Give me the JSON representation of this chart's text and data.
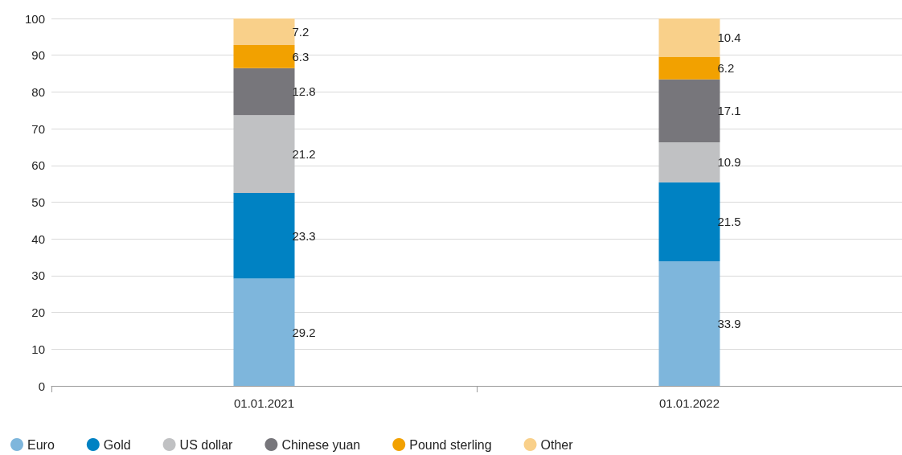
{
  "chart_data": {
    "type": "bar",
    "stacked": true,
    "categories": [
      "01.01.2021",
      "01.01.2022"
    ],
    "series": [
      {
        "name": "Euro",
        "color": "#7eb6dc",
        "values": [
          29.2,
          33.9
        ]
      },
      {
        "name": "Gold",
        "color": "#0082c3",
        "values": [
          23.3,
          21.5
        ]
      },
      {
        "name": "US dollar",
        "color": "#c0c1c3",
        "values": [
          21.2,
          10.9
        ]
      },
      {
        "name": "Chinese yuan",
        "color": "#77767b",
        "values": [
          12.8,
          17.1
        ]
      },
      {
        "name": "Pound sterling",
        "color": "#f2a100",
        "values": [
          6.3,
          6.2
        ]
      },
      {
        "name": "Other",
        "color": "#f9d08a",
        "values": [
          7.2,
          10.4
        ]
      }
    ],
    "ylim": [
      0,
      100
    ],
    "yticks": [
      0,
      10,
      20,
      30,
      40,
      50,
      60,
      70,
      80,
      90,
      100
    ],
    "grid": "y",
    "legend": "bottom left",
    "data_labels": true
  }
}
